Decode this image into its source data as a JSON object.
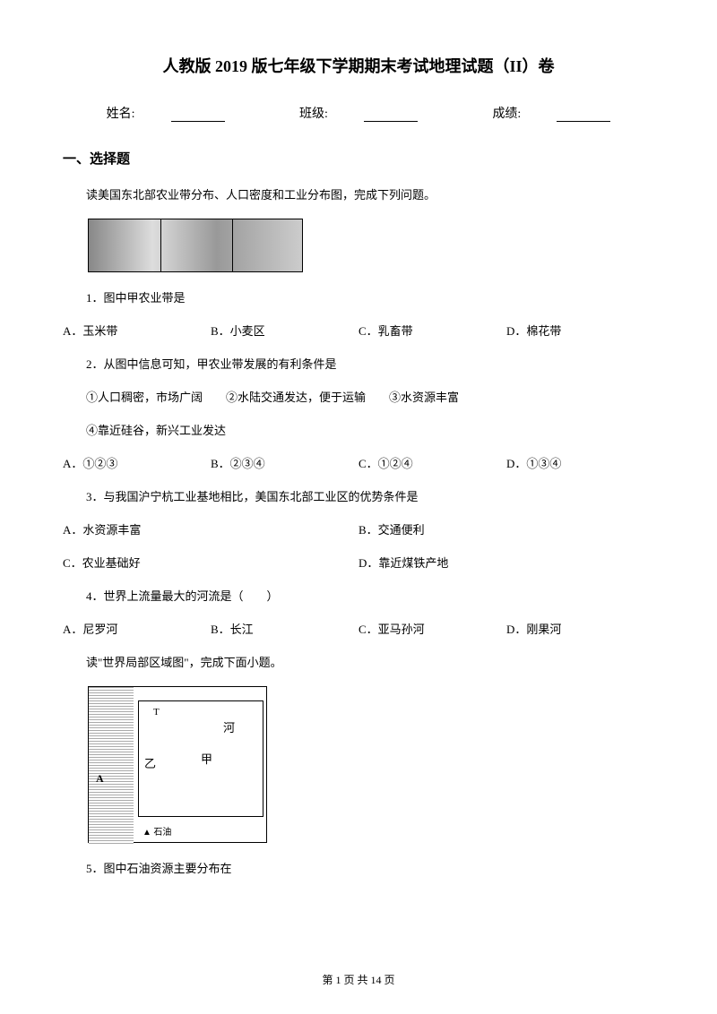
{
  "document": {
    "title": "人教版 2019 版七年级下学期期末考试地理试题（II）卷",
    "info": {
      "name_label": "姓名:",
      "class_label": "班级:",
      "score_label": "成绩:"
    },
    "section_heading": "一、选择题",
    "intro1": "读美国东北部农业带分布、人口密度和工业分布图，完成下列问题。",
    "q1": {
      "text": "1．图中甲农业带是",
      "options": {
        "a": "A．玉米带",
        "b": "B．小麦区",
        "c": "C．乳畜带",
        "d": "D．棉花带"
      }
    },
    "q2": {
      "text": "2．从图中信息可知，甲农业带发展的有利条件是",
      "conditions1": "①人口稠密，市场广阔　　②水陆交通发达，便于运输　　③水资源丰富",
      "conditions2": "④靠近硅谷，新兴工业发达",
      "options": {
        "a": "A．①②③",
        "b": "B．②③④",
        "c": "C．①②④",
        "d": "D．①③④"
      }
    },
    "q3": {
      "text": "3．与我国沪宁杭工业基地相比，美国东北部工业区的优势条件是",
      "options": {
        "a": "A．水资源丰富",
        "b": "B．交通便利",
        "c": "C．农业基础好",
        "d": "D．靠近煤铁产地"
      }
    },
    "q4": {
      "text": "4．世界上流量最大的河流是（　　）",
      "options": {
        "a": "A．尼罗河",
        "b": "B．长江",
        "c": "C．亚马孙河",
        "d": "D．刚果河"
      }
    },
    "intro2": "读\"世界局部区域图\"，完成下面小题。",
    "map_labels": {
      "a": "A",
      "t": "T",
      "yi": "乙",
      "jia": "甲",
      "he": "河",
      "legend": "▲ 石油"
    },
    "q5": {
      "text": "5．图中石油资源主要分布在"
    },
    "footer": "第 1 页 共 14 页"
  }
}
